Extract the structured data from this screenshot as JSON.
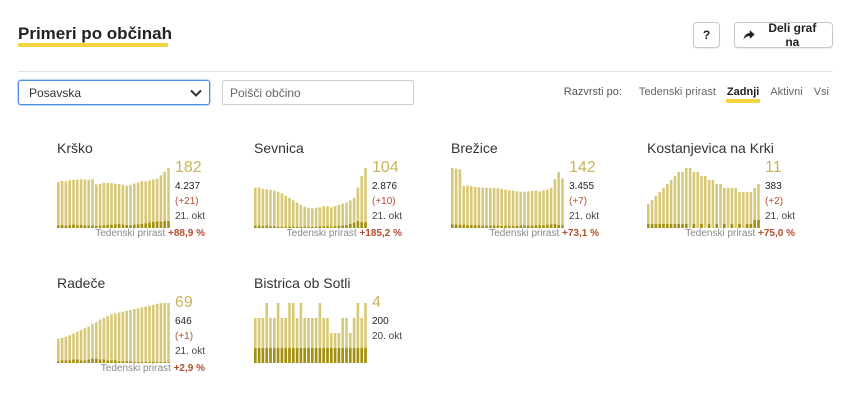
{
  "header": {
    "title": "Primeri po občinah",
    "help_label": "?",
    "share_label": "Deli graf na"
  },
  "filters": {
    "region_selected": "Posavska",
    "search_placeholder": "Poišči občino",
    "sort_label": "Razvrsti po:",
    "sort_options": [
      "Tedenski prirast",
      "Zadnji",
      "Aktivni",
      "Vsi"
    ],
    "active_sort": "Zadnji"
  },
  "colors": {
    "accent_yellow": "#f2d440",
    "bar_light": "#d8c978",
    "bar_dark": "#a38f10",
    "number_gold": "#c9b55a",
    "positive_red": "#b14f2e"
  },
  "icons": {
    "share": "share-arrow-icon",
    "dropdown": "chevron-down-icon"
  },
  "growth_label": "Tedenski prirast",
  "municipalities": [
    {
      "name": "Krško",
      "active": "182",
      "total": "4.237",
      "delta": "(+21)",
      "date": "21. okt",
      "growth": "+88,9 %",
      "chart": {
        "active": [
          140,
          143,
          142,
          145,
          146,
          147,
          148,
          147,
          146,
          148,
          132,
          134,
          137,
          137,
          136,
          134,
          133,
          131,
          128,
          131,
          135,
          138,
          142,
          141,
          144,
          147,
          150,
          160,
          170,
          182
        ],
        "new": [
          8,
          9,
          7,
          8,
          10,
          8,
          9,
          8,
          7,
          8,
          6,
          7,
          8,
          9,
          10,
          11,
          12,
          10,
          9,
          8,
          10,
          11,
          12,
          14,
          16,
          18,
          20,
          19,
          21,
          21
        ]
      }
    },
    {
      "name": "Sevnica",
      "active": "104",
      "total": "2.876",
      "delta": "(+10)",
      "date": "21. okt",
      "growth": "+185,2 %",
      "chart": {
        "active": [
          70,
          70,
          68,
          67,
          66,
          65,
          63,
          60,
          56,
          52,
          48,
          44,
          40,
          37,
          35,
          34,
          35,
          36,
          38,
          38,
          36,
          38,
          40,
          42,
          44,
          48,
          52,
          70,
          90,
          104
        ],
        "new": [
          4,
          4,
          3,
          4,
          3,
          3,
          2,
          2,
          2,
          2,
          2,
          2,
          1,
          2,
          2,
          2,
          2,
          3,
          3,
          3,
          2,
          3,
          4,
          4,
          5,
          7,
          9,
          12,
          10,
          10
        ]
      }
    },
    {
      "name": "Brežice",
      "active": "142",
      "total": "3.455",
      "delta": "(+7)",
      "date": "21. okt",
      "growth": "+73,1 %",
      "chart": {
        "active": [
          172,
          170,
          168,
          120,
          122,
          120,
          118,
          117,
          116,
          115,
          115,
          115,
          114,
          112,
          110,
          108,
          107,
          105,
          104,
          104,
          105,
          106,
          108,
          105,
          108,
          110,
          115,
          140,
          160,
          142
        ],
        "new": [
          10,
          10,
          9,
          9,
          8,
          8,
          8,
          8,
          7,
          7,
          7,
          7,
          7,
          6,
          6,
          6,
          6,
          6,
          7,
          7,
          7,
          7,
          8,
          8,
          8,
          9,
          10,
          12,
          9,
          7
        ]
      }
    },
    {
      "name": "Kostanjevica na Krki",
      "active": "11",
      "total": "383",
      "delta": "(+2)",
      "date": "21. okt",
      "growth": "+75,0 %",
      "chart": {
        "active": [
          6,
          7,
          8,
          9,
          10,
          11,
          12,
          13,
          14,
          14,
          15,
          15,
          14,
          14,
          13,
          13,
          12,
          12,
          11,
          11,
          10,
          10,
          10,
          10,
          9,
          9,
          9,
          9,
          10,
          11
        ],
        "new": [
          1,
          1,
          1,
          1,
          1,
          1,
          1,
          1,
          1,
          1,
          1,
          0,
          1,
          0,
          1,
          0,
          1,
          0,
          1,
          0,
          1,
          0,
          1,
          0,
          1,
          0,
          1,
          1,
          2,
          2
        ]
      }
    },
    {
      "name": "Radeče",
      "active": "69",
      "total": "646",
      "delta": "(+1)",
      "date": "21. okt",
      "growth": "+2,9 %",
      "chart": {
        "active": [
          28,
          29,
          30,
          32,
          34,
          36,
          38,
          40,
          42,
          45,
          47,
          50,
          52,
          54,
          56,
          57,
          58,
          59,
          60,
          61,
          62,
          63,
          64,
          65,
          66,
          67,
          68,
          69,
          69,
          69
        ],
        "new": [
          2,
          3,
          3,
          3,
          4,
          4,
          3,
          3,
          4,
          5,
          5,
          4,
          4,
          3,
          3,
          3,
          2,
          2,
          2,
          2,
          1,
          1,
          1,
          1,
          1,
          1,
          1,
          1,
          1,
          1
        ]
      }
    },
    {
      "name": "Bistrica ob Sotli",
      "active": "4",
      "total": "200",
      "date": "20. okt",
      "chart": {
        "active": [
          3,
          3,
          3,
          4,
          3,
          3,
          4,
          3,
          3,
          4,
          4,
          3,
          4,
          3,
          3,
          3,
          3,
          4,
          3,
          3,
          2,
          2,
          2,
          3,
          3,
          2,
          3,
          4,
          3,
          4
        ],
        "new": [
          1,
          1,
          1,
          1,
          1,
          1,
          1,
          1,
          1,
          1,
          1,
          1,
          1,
          1,
          1,
          1,
          1,
          1,
          1,
          1,
          1,
          1,
          1,
          1,
          1,
          1,
          1,
          1,
          1,
          1
        ]
      }
    }
  ]
}
